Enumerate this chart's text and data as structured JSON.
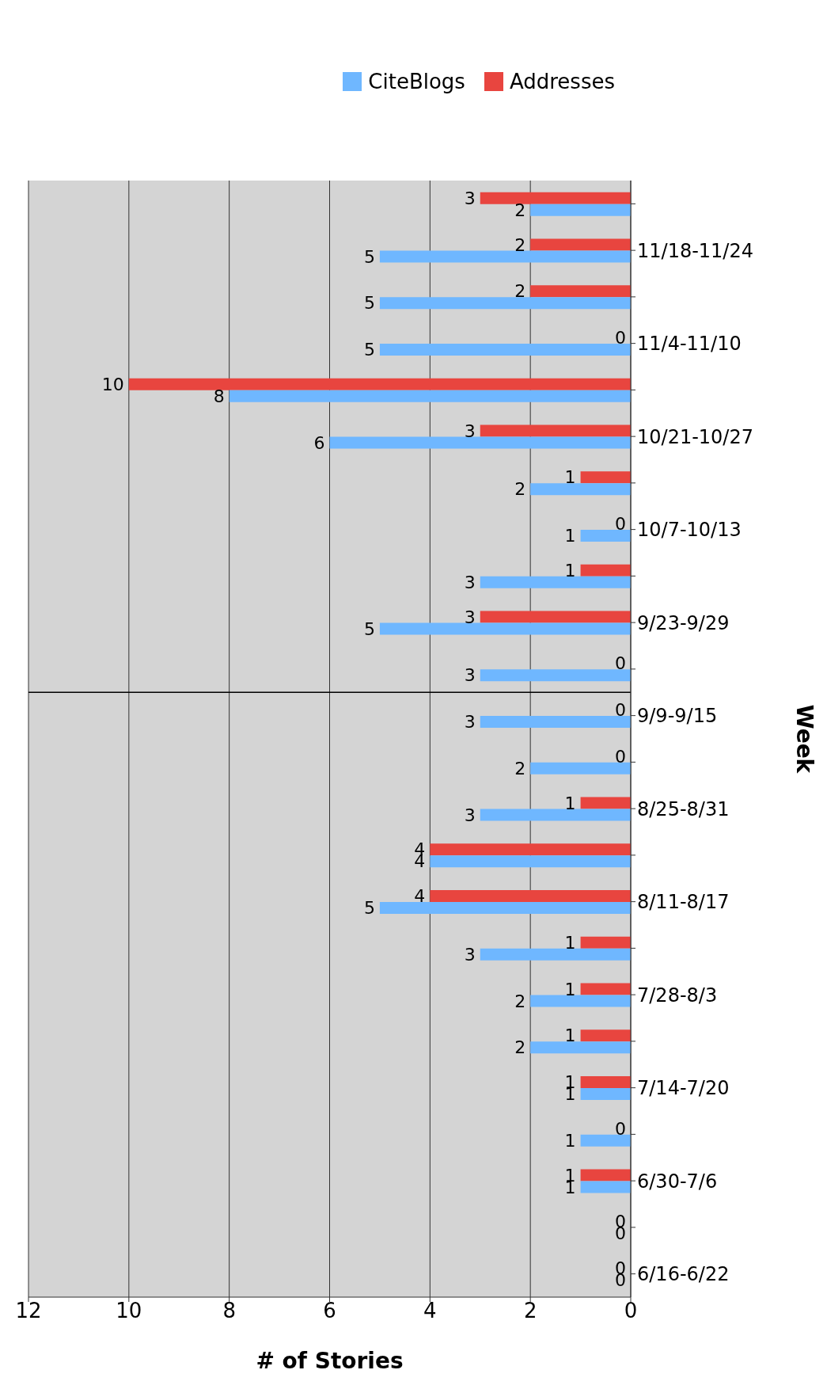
{
  "chart_data": {
    "type": "bar",
    "orientation": "horizontal",
    "xlabel": "# of Stories",
    "ylabel": "Week",
    "categories": [
      null,
      "11/18-11/24",
      null,
      "11/4-11/10",
      null,
      "10/21-10/27",
      null,
      "10/7-10/13",
      null,
      "9/23-9/29",
      null,
      "9/9-9/15",
      null,
      "8/25-8/31",
      null,
      "8/11-8/17",
      null,
      "7/28-8/3",
      null,
      "7/14-7/20",
      null,
      "6/30-7/6",
      null,
      "6/16-6/22"
    ],
    "series": [
      {
        "name": "CiteBlogs",
        "color": "#6fb7ff",
        "values": [
          2,
          5,
          5,
          5,
          8,
          6,
          2,
          1,
          3,
          5,
          3,
          3,
          2,
          3,
          4,
          5,
          3,
          2,
          2,
          1,
          1,
          1,
          0,
          0
        ]
      },
      {
        "name": "Addresses",
        "color": "#e8453f",
        "values": [
          3,
          2,
          2,
          0,
          10,
          3,
          1,
          0,
          1,
          3,
          0,
          0,
          0,
          1,
          4,
          4,
          1,
          1,
          1,
          1,
          0,
          1,
          0,
          0
        ]
      }
    ],
    "xlim": [
      12,
      0
    ],
    "xticks": [
      0,
      2,
      4,
      6,
      8,
      10,
      12
    ],
    "grid": "x",
    "legend": "top right",
    "data_labels": true,
    "ref_lines": [
      {
        "axis": "y",
        "value": "9/9-9/15",
        "color": "#000000"
      }
    ]
  }
}
